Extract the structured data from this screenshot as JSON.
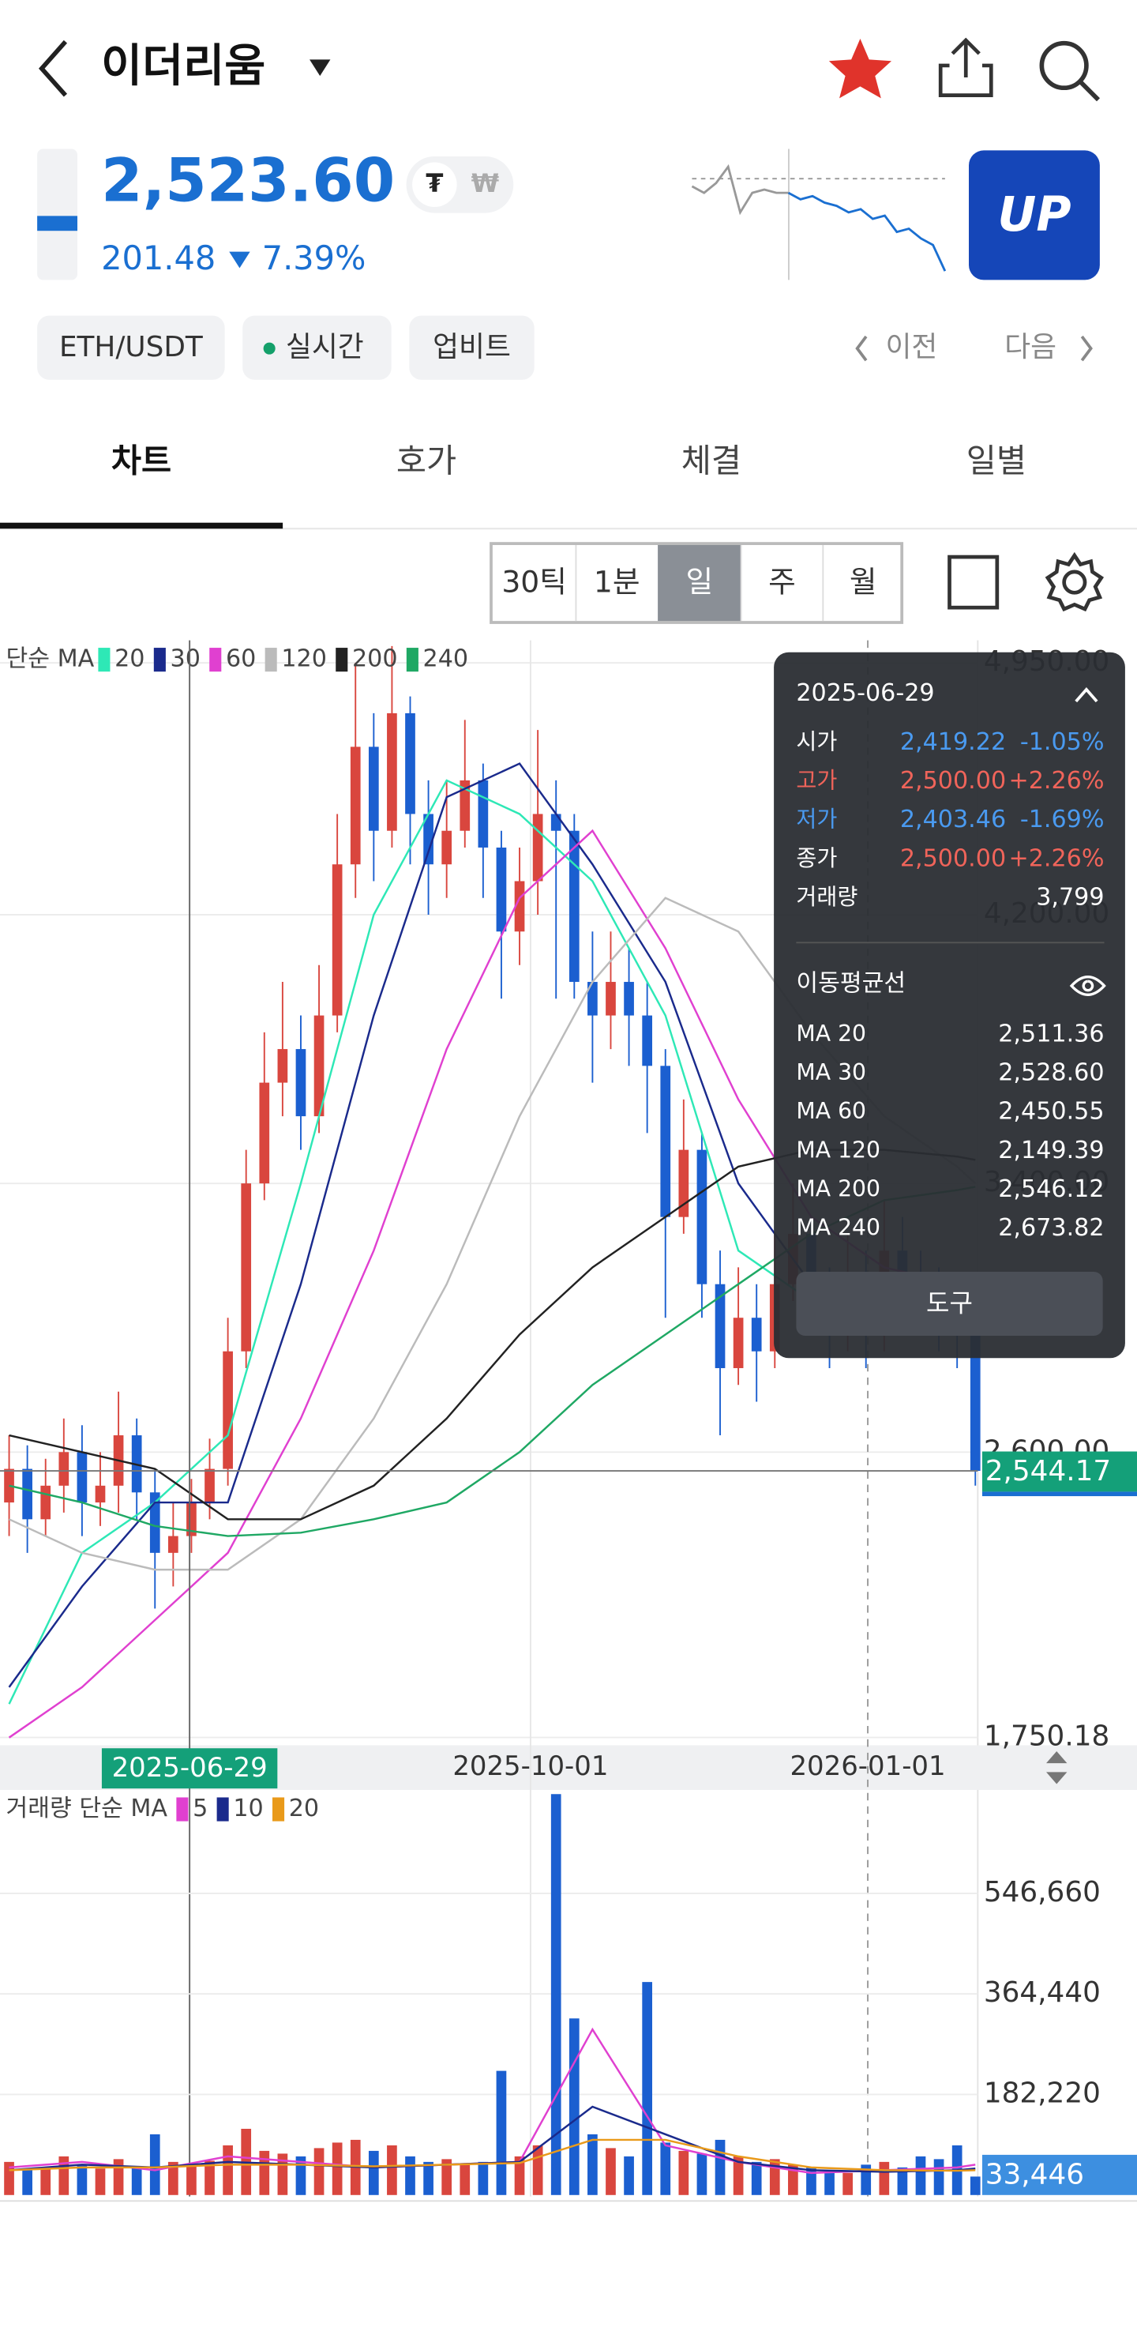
{
  "header": {
    "title": "이더리움"
  },
  "price": {
    "value": "2,523.60",
    "change": "201.48",
    "change_rate": "7.39%",
    "currency_badges": [
      "₮",
      "₩"
    ]
  },
  "sparkline": {
    "values": [
      2610,
      2600,
      2615,
      2640,
      2570,
      2600,
      2605,
      2600,
      2600,
      2590,
      2595,
      2585,
      2580,
      2570,
      2575,
      2560,
      2565,
      2540,
      2545,
      2530,
      2520,
      2480
    ]
  },
  "logo_text": "UP",
  "chips": [
    "ETH/USDT",
    "실시간",
    "업비트"
  ],
  "nav": {
    "prev": "이전",
    "next": "다음"
  },
  "tabs": [
    "차트",
    "호가",
    "체결",
    "일별"
  ],
  "periods": [
    "30틱",
    "1분",
    "일",
    "주",
    "월"
  ],
  "selected_period": "일",
  "chart_data": [
    {
      "type": "candlestick",
      "legend_title": "단순 MA",
      "colors": {
        "up": "#d9463e",
        "down": "#1b5fd0"
      },
      "open": [
        2450,
        2550,
        2400,
        2500,
        2600,
        2450,
        2500,
        2650,
        2480,
        2300,
        2350,
        2450,
        2550,
        2900,
        3400,
        3700,
        3800,
        3600,
        3900,
        4350,
        4700,
        4450,
        4800,
        4500,
        4350,
        4450,
        4600,
        4400,
        4150,
        4300,
        4500,
        4450,
        4000,
        3900,
        4000,
        3900,
        3750,
        3300,
        3500,
        3100,
        2850,
        3000,
        2900,
        3100,
        3250,
        3050,
        2950,
        3100,
        2950,
        3200,
        3100,
        3050,
        3000,
        2950
      ],
      "high": [
        2650,
        2620,
        2580,
        2700,
        2680,
        2600,
        2780,
        2700,
        2550,
        2450,
        2520,
        2640,
        3000,
        3500,
        3850,
        4000,
        3900,
        4050,
        4500,
        4950,
        4800,
        5000,
        4850,
        4600,
        4600,
        4780,
        4650,
        4450,
        4400,
        4750,
        4600,
        4500,
        4150,
        4150,
        4100,
        4000,
        3800,
        3650,
        3550,
        3200,
        3150,
        3100,
        3250,
        3400,
        3300,
        3150,
        3250,
        3200,
        3350,
        3300,
        3200,
        3150,
        3100,
        2980
      ],
      "low": [
        2350,
        2300,
        2350,
        2420,
        2350,
        2380,
        2420,
        2400,
        2134,
        2200,
        2300,
        2400,
        2500,
        2850,
        3350,
        3600,
        3500,
        3550,
        3850,
        4250,
        4300,
        4400,
        4350,
        4200,
        4250,
        4400,
        4250,
        3950,
        4050,
        4200,
        3950,
        3950,
        3700,
        3800,
        3750,
        3550,
        3000,
        3250,
        3000,
        2650,
        2800,
        2750,
        2850,
        3050,
        2950,
        2850,
        2900,
        2850,
        2900,
        3000,
        2950,
        2900,
        2850,
        2500
      ],
      "close": [
        2550,
        2400,
        2500,
        2600,
        2450,
        2500,
        2650,
        2480,
        2300,
        2350,
        2450,
        2550,
        2900,
        3400,
        3700,
        3800,
        3600,
        3900,
        4350,
        4700,
        4450,
        4800,
        4500,
        4350,
        4450,
        4600,
        4400,
        4150,
        4300,
        4500,
        4450,
        4000,
        3900,
        4000,
        3900,
        3750,
        3300,
        3500,
        3100,
        2850,
        3000,
        2900,
        3100,
        3250,
        3050,
        2950,
        3100,
        2950,
        3200,
        3100,
        3050,
        3000,
        2950,
        2544.17
      ],
      "xlim": [
        0,
        54
      ],
      "xticks": [
        {
          "value": 29.1,
          "label": "2025-10-01"
        },
        {
          "value": 47.6,
          "label": "2026-01-01"
        }
      ],
      "crosshair": {
        "x": 10.4,
        "label": "2025-06-29"
      },
      "ylim": [
        1727,
        5017
      ],
      "yticks": [
        {
          "value": 4950,
          "label": "4,950.00"
        },
        {
          "value": 4200,
          "label": "4,200.00"
        },
        {
          "value": 3400,
          "label": "3,400.00"
        },
        {
          "value": 2600,
          "label": "2,600.00"
        },
        {
          "value": 1750.18,
          "label": "1,750.18"
        }
      ],
      "grid": true,
      "last_price": {
        "value": 2544.17,
        "label": "2,544.17"
      },
      "ma_x": [
        0,
        4,
        8,
        12,
        16,
        20,
        24,
        28,
        32,
        36,
        40,
        44,
        48,
        52,
        53
      ],
      "series": [
        {
          "name": "20",
          "color": "#2ee8b6",
          "values": [
            1850,
            2300,
            2450,
            2650,
            3400,
            4200,
            4600,
            4500,
            4300,
            3900,
            3200,
            3050,
            3100,
            3050,
            3000
          ]
        },
        {
          "name": "30",
          "color": "#1a2a8c",
          "values": [
            1900,
            2200,
            2450,
            2450,
            3100,
            3900,
            4550,
            4650,
            4350,
            4000,
            3400,
            3100,
            3100,
            3080,
            3050
          ]
        },
        {
          "name": "60",
          "color": "#e040d0",
          "values": [
            1750,
            1900,
            2100,
            2300,
            2700,
            3200,
            3800,
            4250,
            4450,
            4100,
            3650,
            3300,
            3150,
            3100,
            3080
          ]
        },
        {
          "name": "120",
          "color": "#bbbbbb",
          "values": [
            2400,
            2300,
            2250,
            2250,
            2400,
            2700,
            3100,
            3600,
            4000,
            4250,
            4150,
            3850,
            3600,
            3450,
            3400
          ]
        },
        {
          "name": "200",
          "color": "#222222",
          "values": [
            2650,
            2600,
            2550,
            2400,
            2400,
            2500,
            2700,
            2950,
            3150,
            3300,
            3450,
            3500,
            3500,
            3480,
            3470
          ]
        },
        {
          "name": "240",
          "color": "#1fa864",
          "values": [
            2500,
            2450,
            2380,
            2350,
            2360,
            2400,
            2450,
            2600,
            2800,
            2950,
            3100,
            3250,
            3350,
            3380,
            3390
          ]
        }
      ],
      "tooltip": {
        "date": "2025-06-29",
        "rows": [
          {
            "label": "시가",
            "value": "2,419.22",
            "change": "-1.05%"
          },
          {
            "label": "고가",
            "value": "2,500.00",
            "change": "+2.26%"
          },
          {
            "label": "저가",
            "value": "2,403.46",
            "change": "-1.69%"
          },
          {
            "label": "종가",
            "value": "2,500.00",
            "change": "+2.26%"
          },
          {
            "label": "거래량",
            "value": "3,799"
          }
        ],
        "ma_title": "이동평균선",
        "ma_rows": [
          {
            "label": "MA 20",
            "value": "2,511.36"
          },
          {
            "label": "MA 30",
            "value": "2,528.60"
          },
          {
            "label": "MA 60",
            "value": "2,450.55"
          },
          {
            "label": "MA 120",
            "value": "2,149.39"
          },
          {
            "label": "MA 200",
            "value": "2,546.12"
          },
          {
            "label": "MA 240",
            "value": "2,673.82"
          }
        ],
        "button": "도구"
      }
    },
    {
      "type": "bar",
      "legend_title": "거래량 단순 MA",
      "values": [
        60000,
        45000,
        50000,
        70000,
        55000,
        48000,
        65000,
        52000,
        110000,
        60000,
        55000,
        62000,
        90000,
        120000,
        80000,
        75000,
        70000,
        85000,
        95000,
        100000,
        80000,
        90000,
        70000,
        60000,
        65000,
        55000,
        60000,
        225000,
        70000,
        90000,
        726500,
        320000,
        110000,
        85000,
        70000,
        386000,
        95000,
        80000,
        75000,
        100000,
        70000,
        60000,
        65000,
        55000,
        50000,
        45000,
        40000,
        55000,
        60000,
        50000,
        70000,
        65000,
        90000,
        33446
      ],
      "ylim": [
        0,
        734000
      ],
      "yticks": [
        {
          "value": 546660,
          "label": "546,660"
        },
        {
          "value": 364440,
          "label": "364,440"
        },
        {
          "value": 182220,
          "label": "182,220"
        }
      ],
      "grid": true,
      "last": {
        "value": 33446,
        "label": "33,446"
      },
      "series": [
        {
          "name": "5",
          "color": "#e040d0",
          "values": [
            50000,
            60000,
            45000,
            70000,
            60000,
            50000,
            55000,
            60000,
            300000,
            90000,
            60000,
            40000,
            45000,
            50000,
            55000
          ]
        },
        {
          "name": "10",
          "color": "#1a2a8c",
          "values": [
            45000,
            55000,
            50000,
            60000,
            55000,
            50000,
            55000,
            60000,
            160000,
            110000,
            60000,
            45000,
            42000,
            45000,
            48000
          ]
        },
        {
          "name": "20",
          "color": "#e99a1a",
          "values": [
            45000,
            50000,
            50000,
            55000,
            55000,
            52000,
            55000,
            58000,
            100000,
            100000,
            70000,
            50000,
            45000,
            44000,
            45000
          ]
        }
      ]
    }
  ]
}
